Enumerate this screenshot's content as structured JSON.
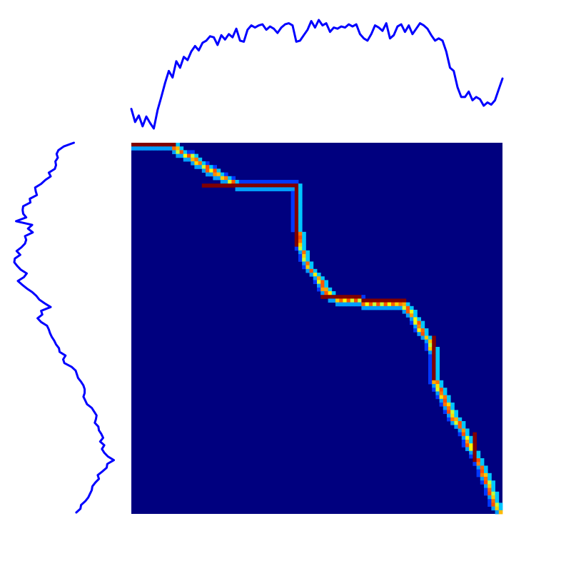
{
  "chart_data": [
    {
      "type": "line",
      "panel": "top-series",
      "title": "",
      "xlabel": "",
      "ylabel": "",
      "axes_visible": false,
      "grid": false,
      "color": "#0000ff",
      "x": [
        0,
        1,
        2,
        3,
        4,
        5,
        6,
        7,
        8,
        9,
        10,
        11,
        12,
        13,
        14,
        15,
        16,
        17,
        18,
        19,
        20,
        21,
        22,
        23,
        24,
        25,
        26,
        27,
        28,
        29,
        30,
        31,
        32,
        33,
        34,
        35,
        36,
        37,
        38,
        39,
        40,
        41,
        42,
        43,
        44,
        45,
        46,
        47,
        48,
        49,
        50,
        51,
        52,
        53,
        54,
        55,
        56,
        57,
        58,
        59,
        60,
        61,
        62,
        63,
        64,
        65,
        66,
        67,
        68,
        69,
        70,
        71,
        72,
        73,
        74,
        75,
        76,
        77,
        78,
        79,
        80,
        81,
        82,
        83,
        84,
        85,
        86,
        87,
        88,
        89,
        90,
        91,
        92,
        93,
        94,
        95,
        96,
        97,
        98,
        99
      ],
      "values": [
        0.18,
        0.06,
        0.12,
        0.02,
        0.11,
        0.05,
        0.0,
        0.17,
        0.29,
        0.42,
        0.53,
        0.47,
        0.62,
        0.56,
        0.66,
        0.63,
        0.71,
        0.76,
        0.72,
        0.79,
        0.81,
        0.85,
        0.84,
        0.77,
        0.86,
        0.82,
        0.87,
        0.84,
        0.92,
        0.81,
        0.8,
        0.91,
        0.95,
        0.93,
        0.95,
        0.96,
        0.91,
        0.94,
        0.92,
        0.88,
        0.93,
        0.96,
        0.97,
        0.95,
        0.8,
        0.81,
        0.86,
        0.91,
        0.99,
        0.93,
        1.0,
        0.95,
        0.97,
        0.89,
        0.93,
        0.92,
        0.94,
        0.93,
        0.96,
        0.94,
        0.96,
        0.87,
        0.83,
        0.81,
        0.87,
        0.95,
        0.93,
        0.9,
        0.97,
        0.83,
        0.86,
        0.94,
        0.96,
        0.89,
        0.95,
        0.87,
        0.92,
        0.97,
        0.95,
        0.92,
        0.86,
        0.81,
        0.83,
        0.81,
        0.71,
        0.56,
        0.53,
        0.38,
        0.29,
        0.29,
        0.34,
        0.26,
        0.29,
        0.27,
        0.21,
        0.24,
        0.22,
        0.26,
        0.36,
        0.46
      ],
      "ylim": [
        0,
        1
      ]
    },
    {
      "type": "line",
      "panel": "left-series",
      "orientation": "vertical",
      "title": "",
      "xlabel": "",
      "ylabel": "",
      "axes_visible": false,
      "grid": false,
      "color": "#0000ff",
      "x": [
        0,
        1,
        2,
        3,
        4,
        5,
        6,
        7,
        8,
        9,
        10,
        11,
        12,
        13,
        14,
        15,
        16,
        17,
        18,
        19,
        20,
        21,
        22,
        23,
        24,
        25,
        26,
        27,
        28,
        29,
        30,
        31,
        32,
        33,
        34,
        35,
        36,
        37,
        38,
        39,
        40,
        41,
        42,
        43,
        44,
        45,
        46,
        47,
        48,
        49,
        50,
        51,
        52,
        53,
        54,
        55,
        56,
        57,
        58,
        59,
        60,
        61,
        62,
        63,
        64,
        65,
        66,
        67,
        68,
        69,
        70,
        71,
        72,
        73,
        74,
        75,
        76,
        77,
        78,
        79,
        80,
        81,
        82,
        83,
        84,
        85,
        86,
        87,
        88,
        89,
        90,
        91,
        92,
        93,
        94,
        95,
        96,
        97,
        98,
        99
      ],
      "values": [
        0.0,
        0.17,
        0.26,
        0.29,
        0.27,
        0.31,
        0.3,
        0.32,
        0.42,
        0.39,
        0.48,
        0.55,
        0.65,
        0.64,
        0.62,
        0.74,
        0.73,
        0.85,
        0.86,
        0.85,
        0.8,
        0.97,
        0.7,
        0.77,
        0.69,
        0.82,
        0.8,
        0.82,
        0.88,
        0.96,
        0.9,
        0.99,
        1.0,
        0.95,
        0.89,
        0.79,
        0.84,
        0.94,
        0.87,
        0.79,
        0.7,
        0.63,
        0.58,
        0.49,
        0.39,
        0.55,
        0.53,
        0.61,
        0.55,
        0.45,
        0.42,
        0.4,
        0.37,
        0.33,
        0.3,
        0.25,
        0.24,
        0.14,
        0.18,
        0.16,
        0.04,
        -0.03,
        -0.05,
        -0.07,
        -0.12,
        -0.16,
        -0.18,
        -0.18,
        -0.16,
        -0.19,
        -0.22,
        -0.3,
        -0.34,
        -0.38,
        -0.37,
        -0.35,
        -0.41,
        -0.42,
        -0.46,
        -0.49,
        -0.44,
        -0.51,
        -0.47,
        -0.51,
        -0.57,
        -0.67,
        -0.56,
        -0.55,
        -0.48,
        -0.4,
        -0.42,
        -0.36,
        -0.31,
        -0.3,
        -0.27,
        -0.24,
        -0.19,
        -0.12,
        -0.11,
        -0.04
      ],
      "ylim": [
        -0.7,
        1.0
      ]
    },
    {
      "type": "heatmap",
      "panel": "main",
      "title": "",
      "xlabel": "",
      "ylabel": "",
      "axes_visible": false,
      "colormap": "jet",
      "background_color": "#00007f",
      "size": [
        100,
        100
      ],
      "path_cells": [
        [
          0,
          0
        ],
        [
          0,
          11
        ],
        [
          2,
          12
        ],
        [
          3,
          15
        ],
        [
          6,
          19
        ],
        [
          11,
          28
        ],
        [
          11,
          44
        ],
        [
          13,
          44
        ],
        [
          15,
          44
        ],
        [
          20,
          44
        ],
        [
          27,
          45
        ],
        [
          30,
          46
        ],
        [
          33,
          47
        ],
        [
          36,
          50
        ],
        [
          40,
          52
        ],
        [
          42,
          55
        ],
        [
          42,
          60
        ],
        [
          43,
          64
        ],
        [
          43,
          72
        ],
        [
          44,
          74
        ],
        [
          47,
          76
        ],
        [
          51,
          78
        ],
        [
          53,
          80
        ],
        [
          57,
          81
        ],
        [
          63,
          81
        ],
        [
          67,
          83
        ],
        [
          71,
          85
        ],
        [
          73,
          86
        ],
        [
          77,
          89
        ],
        [
          80,
          90
        ],
        [
          85,
          93
        ],
        [
          88,
          94
        ],
        [
          92,
          96
        ],
        [
          96,
          97
        ],
        [
          99,
          99
        ]
      ],
      "high_segments": [
        [
          0,
          0,
          0,
          11
        ],
        [
          11,
          19,
          11,
          43
        ],
        [
          11,
          44,
          27,
          44
        ],
        [
          41,
          51,
          42,
          73
        ],
        [
          52,
          81,
          63,
          81
        ],
        [
          78,
          92,
          85,
          92
        ]
      ]
    }
  ]
}
